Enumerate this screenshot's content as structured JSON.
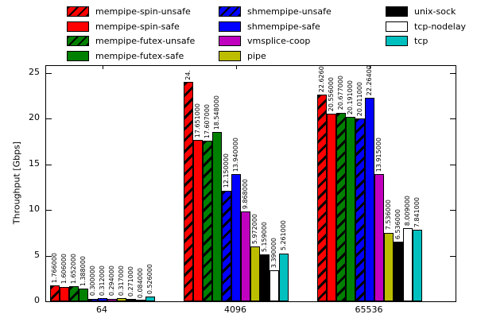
{
  "chart_data": {
    "type": "bar",
    "title": "",
    "xlabel": "",
    "ylabel": "Throughput [Gbps]",
    "categories": [
      "64",
      "4096",
      "65536"
    ],
    "ylim": [
      0,
      25
    ],
    "yticks": [
      0,
      5,
      10,
      15,
      20,
      25
    ],
    "grid": false,
    "legend_position": "top",
    "series": [
      {
        "name": "mempipe-spin-unsafe",
        "color": "#ff0000",
        "hatch": true,
        "values": [
          1.766,
          24.0,
          22.626
        ],
        "labels": [
          "1.766000",
          "24.",
          "22.626000"
        ]
      },
      {
        "name": "mempipe-spin-safe",
        "color": "#ff0000",
        "hatch": false,
        "values": [
          1.606,
          17.651,
          20.556
        ],
        "labels": [
          "1.606000",
          "17.651000",
          "20.556000"
        ]
      },
      {
        "name": "mempipe-futex-unsafe",
        "color": "#008000",
        "hatch": true,
        "values": [
          1.652,
          17.607,
          20.677
        ],
        "labels": [
          "1.652000",
          "17.607000",
          "20.677000"
        ]
      },
      {
        "name": "mempipe-futex-safe",
        "color": "#008000",
        "hatch": false,
        "values": [
          1.388,
          18.548,
          20.191
        ],
        "labels": [
          "1.388000",
          "18.548000",
          "20.191000"
        ]
      },
      {
        "name": "shmempipe-unsafe",
        "color": "#0000ff",
        "hatch": true,
        "values": [
          0.3,
          12.15,
          20.011
        ],
        "labels": [
          "0.300000",
          "12.150000",
          "20.011000"
        ]
      },
      {
        "name": "shmempipe-safe",
        "color": "#0000ff",
        "hatch": false,
        "values": [
          0.312,
          13.94,
          22.264
        ],
        "labels": [
          "0.312000",
          "13.940000",
          "22.264000"
        ]
      },
      {
        "name": "vmsplice-coop",
        "color": "#bf00bf",
        "hatch": false,
        "values": [
          0.294,
          9.868,
          13.915
        ],
        "labels": [
          "0.294000",
          "9.868000",
          "13.915000"
        ]
      },
      {
        "name": "pipe",
        "color": "#bdbd00",
        "hatch": false,
        "values": [
          0.317,
          5.972,
          7.536
        ],
        "labels": [
          "0.317000",
          "5.972000",
          "7.536000"
        ]
      },
      {
        "name": "unix-sock",
        "color": "#000000",
        "hatch": false,
        "values": [
          0.271,
          5.159,
          6.536
        ],
        "labels": [
          "0.271000",
          "5.159000",
          "6.536000"
        ]
      },
      {
        "name": "tcp-nodelay",
        "color": "#ffffff",
        "hatch": false,
        "values": [
          0.084,
          3.39,
          8.009
        ],
        "labels": [
          "0.084000",
          "3.390000",
          "8.009000"
        ]
      },
      {
        "name": "tcp",
        "color": "#00bfbf",
        "hatch": false,
        "values": [
          0.526,
          5.261,
          7.841
        ],
        "labels": [
          "0.526000",
          "5.261000",
          "7.841000"
        ]
      }
    ]
  },
  "legend": {
    "columns": [
      [
        0,
        1,
        2,
        3
      ],
      [
        4,
        5,
        6,
        7
      ],
      [
        8,
        9,
        10
      ]
    ]
  }
}
